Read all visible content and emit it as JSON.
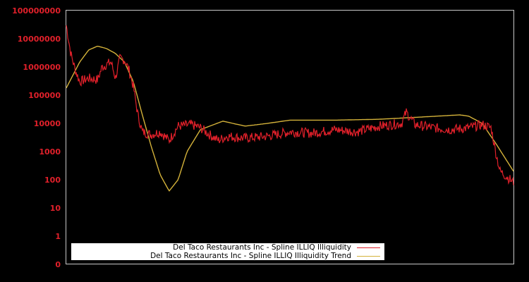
{
  "chart_data": {
    "type": "line",
    "title": "",
    "xlabel": "",
    "ylabel": "",
    "yscale": "log",
    "y_tick_labels": [
      "100000000",
      "10000000",
      "1000000",
      "100000",
      "10000",
      "1000",
      "100",
      "10",
      "1",
      "0"
    ],
    "ylim": [
      0,
      100000000
    ],
    "grid": false,
    "legend_position": "bottom-left inside",
    "series": [
      {
        "name": "Del Taco Restaurants Inc - Spline ILLIQ Illiquidity",
        "color": "#e0202a",
        "approx_points": [
          [
            0.0,
            30000000
          ],
          [
            0.01,
            3000000
          ],
          [
            0.02,
            800000
          ],
          [
            0.03,
            300000
          ],
          [
            0.05,
            400000
          ],
          [
            0.07,
            350000
          ],
          [
            0.08,
            1000000
          ],
          [
            0.1,
            1500000
          ],
          [
            0.11,
            400000
          ],
          [
            0.12,
            2000000
          ],
          [
            0.13,
            1800000
          ],
          [
            0.14,
            800000
          ],
          [
            0.15,
            200000
          ],
          [
            0.16,
            20000
          ],
          [
            0.17,
            5000
          ],
          [
            0.19,
            4000
          ],
          [
            0.21,
            5000
          ],
          [
            0.23,
            2500
          ],
          [
            0.25,
            8000
          ],
          [
            0.28,
            9000
          ],
          [
            0.3,
            7000
          ],
          [
            0.32,
            4000
          ],
          [
            0.34,
            2500
          ],
          [
            0.36,
            3500
          ],
          [
            0.4,
            3000
          ],
          [
            0.45,
            3500
          ],
          [
            0.5,
            5000
          ],
          [
            0.55,
            4500
          ],
          [
            0.6,
            6000
          ],
          [
            0.65,
            5000
          ],
          [
            0.7,
            8000
          ],
          [
            0.75,
            10000
          ],
          [
            0.76,
            25000
          ],
          [
            0.78,
            9000
          ],
          [
            0.82,
            7000
          ],
          [
            0.86,
            6000
          ],
          [
            0.9,
            7000
          ],
          [
            0.93,
            9000
          ],
          [
            0.95,
            7000
          ],
          [
            0.96,
            1000
          ],
          [
            0.97,
            200
          ],
          [
            0.98,
            150
          ],
          [
            1.0,
            80
          ]
        ]
      },
      {
        "name": "Del Taco Restaurants Inc - Spline ILLIQ Illiquidity Trend",
        "color": "#d4b23a",
        "approx_points": [
          [
            0.0,
            180000
          ],
          [
            0.03,
            1500000
          ],
          [
            0.05,
            4000000
          ],
          [
            0.07,
            5500000
          ],
          [
            0.09,
            4500000
          ],
          [
            0.11,
            3000000
          ],
          [
            0.13,
            1500000
          ],
          [
            0.15,
            300000
          ],
          [
            0.17,
            20000
          ],
          [
            0.19,
            1500
          ],
          [
            0.21,
            150
          ],
          [
            0.23,
            40
          ],
          [
            0.25,
            100
          ],
          [
            0.27,
            1000
          ],
          [
            0.3,
            6000
          ],
          [
            0.35,
            12000
          ],
          [
            0.4,
            8000
          ],
          [
            0.45,
            10000
          ],
          [
            0.5,
            13000
          ],
          [
            0.6,
            13000
          ],
          [
            0.7,
            14000
          ],
          [
            0.8,
            17000
          ],
          [
            0.88,
            20000
          ],
          [
            0.9,
            18000
          ],
          [
            0.93,
            10000
          ],
          [
            0.96,
            2000
          ],
          [
            1.0,
            200
          ]
        ]
      }
    ]
  },
  "legend": {
    "items": [
      {
        "label": "Del Taco Restaurants Inc - Spline ILLIQ Illiquidity",
        "color": "#e0202a"
      },
      {
        "label": "Del Taco Restaurants Inc - Spline ILLIQ Illiquidity Trend",
        "color": "#d4b23a"
      }
    ]
  }
}
